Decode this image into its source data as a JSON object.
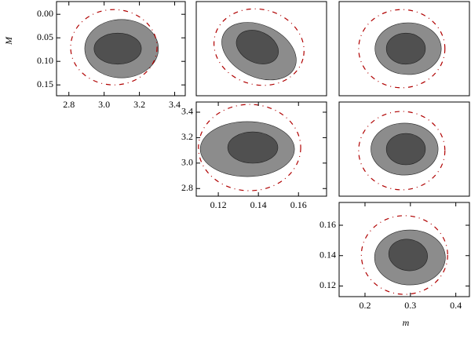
{
  "chart_data": [
    {
      "type": "contour",
      "ylabel": "M",
      "xlim": [
        2.73,
        3.46
      ],
      "ylim": [
        0.173,
        -0.027
      ],
      "xticks": [
        2.8,
        {
          "value": 3,
          "label": "3.0"
        },
        3.2,
        3.4
      ],
      "yticks": [
        {
          "value": 0,
          "label": "0.00"
        },
        0.05,
        {
          "value": 0.1,
          "label": "0.10"
        },
        0.15
      ],
      "ellipses": [
        {
          "fill": "#8c8c8c",
          "center": [
            3.099,
            0.073
          ],
          "rx": 0.209,
          "ry": 0.062,
          "angle": 0
        },
        {
          "fill": "#505050",
          "center": [
            3.077,
            0.073
          ],
          "rx": 0.134,
          "ry": 0.033,
          "angle": 0
        },
        {
          "stroke": "#b00000",
          "dashed": true,
          "center": [
            3.055,
            0.07
          ],
          "rx": 0.245,
          "ry": 0.08,
          "angle": 0
        }
      ]
    },
    {
      "type": "contour",
      "xlim": [
        0.109,
        0.174
      ],
      "ylim": [
        0.173,
        -0.027
      ],
      "ellipses": [
        {
          "fill": "#8c8c8c",
          "center": [
            0.1403,
            0.0783
          ],
          "rx": 0.0196,
          "ry": 0.055,
          "angle": 25
        },
        {
          "fill": "#505050",
          "center": [
            0.1395,
            0.0697
          ],
          "rx": 0.011,
          "ry": 0.033,
          "angle": 25
        },
        {
          "stroke": "#b00000",
          "dashed": true,
          "center": [
            0.1403,
            0.0697
          ],
          "rx": 0.0227,
          "ry": 0.08,
          "angle": 15
        }
      ]
    },
    {
      "type": "contour",
      "xlim": [
        0.143,
        0.43
      ],
      "ylim": [
        0.173,
        -0.027
      ],
      "ellipses": [
        {
          "fill": "#8c8c8c",
          "center": [
            0.295,
            0.073
          ],
          "rx": 0.073,
          "ry": 0.055,
          "angle": 0
        },
        {
          "fill": "#505050",
          "center": [
            0.29,
            0.073
          ],
          "rx": 0.043,
          "ry": 0.033,
          "angle": 0
        },
        {
          "stroke": "#b00000",
          "dashed": true,
          "center": [
            0.281,
            0.073
          ],
          "rx": 0.095,
          "ry": 0.083,
          "angle": 0
        }
      ]
    },
    {
      "type": "contour",
      "xlim": [
        0.109,
        0.174
      ],
      "ylim": [
        2.74,
        3.48
      ],
      "xticks": [
        0.12,
        0.14,
        0.16
      ],
      "yticks": [
        3.4,
        3.2,
        {
          "value": 3,
          "label": "3.0"
        },
        2.8
      ],
      "ellipses": [
        {
          "fill": "#8c8c8c",
          "center": [
            0.1345,
            3.11
          ],
          "rx": 0.0235,
          "ry": 0.216,
          "angle": 0
        },
        {
          "fill": "#505050",
          "center": [
            0.1372,
            3.122
          ],
          "rx": 0.0125,
          "ry": 0.123,
          "angle": 0
        },
        {
          "stroke": "#b00000",
          "dashed": true,
          "center": [
            0.1356,
            3.122
          ],
          "rx": 0.0255,
          "ry": 0.339,
          "angle": 0
        }
      ]
    },
    {
      "type": "contour",
      "xlim": [
        0.143,
        0.43
      ],
      "ylim": [
        2.74,
        3.48
      ],
      "ellipses": [
        {
          "fill": "#8c8c8c",
          "center": [
            0.287,
            3.11
          ],
          "rx": 0.074,
          "ry": 0.204,
          "angle": 0
        },
        {
          "fill": "#505050",
          "center": [
            0.29,
            3.11
          ],
          "rx": 0.043,
          "ry": 0.123,
          "angle": 0
        },
        {
          "stroke": "#b00000",
          "dashed": true,
          "center": [
            0.281,
            3.098
          ],
          "rx": 0.095,
          "ry": 0.308,
          "angle": 0
        }
      ]
    },
    {
      "type": "contour",
      "xlabel": "m",
      "xlim": [
        0.143,
        0.43
      ],
      "ylim": [
        0.113,
        0.175
      ],
      "xticks": [
        0.2,
        0.3,
        0.4
      ],
      "yticks": [
        0.16,
        0.14,
        0.12
      ],
      "ellipses": [
        {
          "fill": "#8c8c8c",
          "center": [
            0.299,
            0.1388
          ],
          "rx": 0.078,
          "ry": 0.0181,
          "angle": 0
        },
        {
          "fill": "#505050",
          "center": [
            0.295,
            0.1404
          ],
          "rx": 0.043,
          "ry": 0.0103,
          "angle": 10
        },
        {
          "stroke": "#b00000",
          "dashed": true,
          "center": [
            0.287,
            0.1404
          ],
          "rx": 0.095,
          "ry": 0.0259,
          "angle": 0
        }
      ]
    }
  ]
}
